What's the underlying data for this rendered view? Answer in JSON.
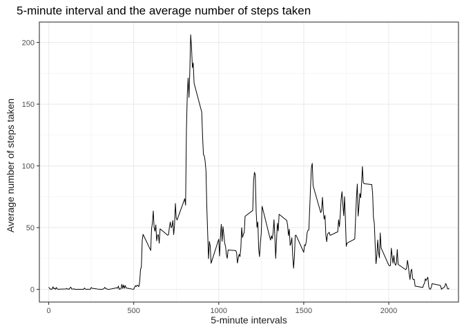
{
  "chart_data": {
    "type": "line",
    "title": "5-minute interval and the average number of steps taken",
    "xlabel": "5-minute intervals",
    "ylabel": "Average number of steps taken",
    "xlim": [
      -55,
      2410
    ],
    "ylim": [
      -10.3,
      216.5
    ],
    "x_ticks": [
      0,
      500,
      1000,
      1500,
      2000
    ],
    "x_tick_labels": [
      "0",
      "500",
      "1000",
      "1500",
      "2000"
    ],
    "y_ticks": [
      0,
      50,
      100,
      150,
      200
    ],
    "y_tick_labels": [
      "0",
      "50",
      "100",
      "150",
      "200"
    ],
    "grid": true,
    "series": [
      {
        "color": "#000000",
        "points": [
          [
            0,
            1.7
          ],
          [
            10,
            0.1
          ],
          [
            15,
            0.2
          ],
          [
            20,
            0.1
          ],
          [
            25,
            2.1
          ],
          [
            30,
            0.5
          ],
          [
            35,
            0.9
          ],
          [
            40,
            0
          ],
          [
            45,
            1.5
          ],
          [
            50,
            0.3
          ],
          [
            55,
            0.1
          ],
          [
            100,
            0.3
          ],
          [
            105,
            0.7
          ],
          [
            110,
            0.2
          ],
          [
            115,
            0.3
          ],
          [
            120,
            0
          ],
          [
            125,
            1.1
          ],
          [
            130,
            1.8
          ],
          [
            135,
            0.2
          ],
          [
            140,
            0.2
          ],
          [
            145,
            0.4
          ],
          [
            150,
            0.3
          ],
          [
            155,
            0
          ],
          [
            200,
            0
          ],
          [
            205,
            0
          ],
          [
            210,
            1.1
          ],
          [
            215,
            0.3
          ],
          [
            220,
            0
          ],
          [
            225,
            0.1
          ],
          [
            230,
            0
          ],
          [
            235,
            0.2
          ],
          [
            240,
            0
          ],
          [
            245,
            0
          ],
          [
            250,
            1.5
          ],
          [
            255,
            0.9
          ],
          [
            300,
            0
          ],
          [
            305,
            0
          ],
          [
            310,
            0
          ],
          [
            315,
            0
          ],
          [
            320,
            0.2
          ],
          [
            325,
            0.6
          ],
          [
            330,
            1.6
          ],
          [
            335,
            0.6
          ],
          [
            340,
            0.5
          ],
          [
            345,
            0.1
          ],
          [
            350,
            0
          ],
          [
            355,
            0
          ],
          [
            400,
            1.2
          ],
          [
            405,
            0.9
          ],
          [
            410,
            2.6
          ],
          [
            415,
            0
          ],
          [
            420,
            0.3
          ],
          [
            425,
            0.4
          ],
          [
            430,
            4.1
          ],
          [
            435,
            0.7
          ],
          [
            440,
            3.5
          ],
          [
            445,
            0.8
          ],
          [
            450,
            3.1
          ],
          [
            455,
            1.1
          ],
          [
            500,
            0
          ],
          [
            505,
            1.6
          ],
          [
            510,
            3
          ],
          [
            515,
            2.2
          ],
          [
            520,
            3.3
          ],
          [
            525,
            3
          ],
          [
            530,
            2.1
          ],
          [
            535,
            6.1
          ],
          [
            540,
            16
          ],
          [
            545,
            18.3
          ],
          [
            550,
            39.5
          ],
          [
            555,
            44.5
          ],
          [
            600,
            31.5
          ],
          [
            605,
            49.3
          ],
          [
            610,
            53.8
          ],
          [
            615,
            63.5
          ],
          [
            620,
            50
          ],
          [
            625,
            47.1
          ],
          [
            630,
            52.2
          ],
          [
            635,
            39.3
          ],
          [
            640,
            44
          ],
          [
            645,
            44.2
          ],
          [
            650,
            37.4
          ],
          [
            655,
            49
          ],
          [
            700,
            43.8
          ],
          [
            705,
            44.4
          ],
          [
            710,
            50.5
          ],
          [
            715,
            54.5
          ],
          [
            720,
            49.9
          ],
          [
            725,
            50.9
          ],
          [
            730,
            55.7
          ],
          [
            735,
            44.3
          ],
          [
            740,
            52.3
          ],
          [
            745,
            69.5
          ],
          [
            750,
            57.8
          ],
          [
            755,
            56.2
          ],
          [
            800,
            73.4
          ],
          [
            805,
            68.2
          ],
          [
            810,
            129.4
          ],
          [
            815,
            157.5
          ],
          [
            820,
            171.2
          ],
          [
            825,
            155.4
          ],
          [
            830,
            177.3
          ],
          [
            835,
            206.2
          ],
          [
            840,
            195.9
          ],
          [
            845,
            179.6
          ],
          [
            850,
            183.4
          ],
          [
            855,
            167
          ],
          [
            900,
            143.5
          ],
          [
            905,
            124
          ],
          [
            910,
            109.1
          ],
          [
            915,
            108.1
          ],
          [
            920,
            103.7
          ],
          [
            925,
            95.9
          ],
          [
            930,
            66.2
          ],
          [
            935,
            45.2
          ],
          [
            940,
            24.8
          ],
          [
            945,
            38.8
          ],
          [
            950,
            34.9
          ],
          [
            955,
            21.1
          ],
          [
            1000,
            40.6
          ],
          [
            1005,
            27
          ],
          [
            1010,
            42.4
          ],
          [
            1015,
            52.7
          ],
          [
            1020,
            38.9
          ],
          [
            1025,
            50.8
          ],
          [
            1030,
            44.3
          ],
          [
            1035,
            37.4
          ],
          [
            1040,
            34.7
          ],
          [
            1045,
            28.3
          ],
          [
            1050,
            25.1
          ],
          [
            1055,
            31.9
          ],
          [
            1100,
            31.4
          ],
          [
            1105,
            29.7
          ],
          [
            1110,
            21.3
          ],
          [
            1115,
            25.5
          ],
          [
            1120,
            28.4
          ],
          [
            1125,
            26.5
          ],
          [
            1130,
            33.4
          ],
          [
            1135,
            49.98
          ],
          [
            1140,
            42
          ],
          [
            1145,
            44.6
          ],
          [
            1150,
            46
          ],
          [
            1155,
            59.2
          ],
          [
            1200,
            63.9
          ],
          [
            1205,
            87.7
          ],
          [
            1210,
            94.8
          ],
          [
            1215,
            92.8
          ],
          [
            1220,
            63.4
          ],
          [
            1225,
            50.2
          ],
          [
            1230,
            54.5
          ],
          [
            1235,
            32.4
          ],
          [
            1240,
            26.5
          ],
          [
            1245,
            37.7
          ],
          [
            1250,
            45.1
          ],
          [
            1255,
            67.3
          ],
          [
            1300,
            42.3
          ],
          [
            1305,
            39.9
          ],
          [
            1310,
            43.3
          ],
          [
            1315,
            40.98
          ],
          [
            1320,
            46.2
          ],
          [
            1325,
            56.4
          ],
          [
            1330,
            42.8
          ],
          [
            1335,
            25.1
          ],
          [
            1340,
            39.97
          ],
          [
            1345,
            53.5
          ],
          [
            1350,
            47.3
          ],
          [
            1355,
            60.8
          ],
          [
            1400,
            55.8
          ],
          [
            1405,
            51.96
          ],
          [
            1410,
            43.6
          ],
          [
            1415,
            48.7
          ],
          [
            1420,
            35.5
          ],
          [
            1425,
            37.5
          ],
          [
            1430,
            41.8
          ],
          [
            1435,
            27.5
          ],
          [
            1440,
            17.1
          ],
          [
            1445,
            26.1
          ],
          [
            1450,
            43.6
          ],
          [
            1455,
            43.8
          ],
          [
            1500,
            30
          ],
          [
            1505,
            36.1
          ],
          [
            1510,
            35.5
          ],
          [
            1515,
            38.8
          ],
          [
            1520,
            45.96
          ],
          [
            1525,
            47.8
          ],
          [
            1530,
            48.1
          ],
          [
            1535,
            65.3
          ],
          [
            1540,
            82.9
          ],
          [
            1545,
            98.7
          ],
          [
            1550,
            102.1
          ],
          [
            1555,
            83.96
          ],
          [
            1600,
            62.1
          ],
          [
            1605,
            64.1
          ],
          [
            1610,
            74.5
          ],
          [
            1615,
            63.2
          ],
          [
            1620,
            56.9
          ],
          [
            1625,
            59.8
          ],
          [
            1630,
            43.9
          ],
          [
            1635,
            38.6
          ],
          [
            1640,
            44.7
          ],
          [
            1645,
            45.5
          ],
          [
            1650,
            46.2
          ],
          [
            1655,
            43.7
          ],
          [
            1700,
            46.6
          ],
          [
            1705,
            56.3
          ],
          [
            1710,
            50.7
          ],
          [
            1715,
            61.2
          ],
          [
            1720,
            73.4
          ],
          [
            1725,
            79.1
          ],
          [
            1730,
            68.9
          ],
          [
            1735,
            59.7
          ],
          [
            1740,
            75.1
          ],
          [
            1745,
            56.5
          ],
          [
            1750,
            34.8
          ],
          [
            1755,
            37.5
          ],
          [
            1800,
            40.7
          ],
          [
            1805,
            58
          ],
          [
            1810,
            74.7
          ],
          [
            1815,
            85.3
          ],
          [
            1820,
            59.3
          ],
          [
            1825,
            67.8
          ],
          [
            1830,
            77.7
          ],
          [
            1835,
            74.2
          ],
          [
            1840,
            85.3
          ],
          [
            1845,
            99.5
          ],
          [
            1850,
            86.6
          ],
          [
            1855,
            85.6
          ],
          [
            1900,
            84.9
          ],
          [
            1905,
            77.8
          ],
          [
            1910,
            58
          ],
          [
            1915,
            53.4
          ],
          [
            1920,
            36.3
          ],
          [
            1925,
            20.7
          ],
          [
            1930,
            27.4
          ],
          [
            1935,
            40
          ],
          [
            1940,
            30.2
          ],
          [
            1945,
            25.5
          ],
          [
            1950,
            45.7
          ],
          [
            1955,
            33.5
          ],
          [
            2000,
            19.6
          ],
          [
            2005,
            19
          ],
          [
            2010,
            19.3
          ],
          [
            2015,
            33.3
          ],
          [
            2020,
            26.8
          ],
          [
            2025,
            21.2
          ],
          [
            2030,
            27.3
          ],
          [
            2035,
            21.3
          ],
          [
            2040,
            19.5
          ],
          [
            2045,
            21.3
          ],
          [
            2050,
            32.3
          ],
          [
            2055,
            20.2
          ],
          [
            2100,
            15.9
          ],
          [
            2105,
            17.2
          ],
          [
            2110,
            23.5
          ],
          [
            2115,
            19.2
          ],
          [
            2120,
            12.5
          ],
          [
            2125,
            8
          ],
          [
            2130,
            14.7
          ],
          [
            2135,
            16.3
          ],
          [
            2140,
            8.7
          ],
          [
            2145,
            7.8
          ],
          [
            2150,
            8.1
          ],
          [
            2155,
            2.6
          ],
          [
            2200,
            1.5
          ],
          [
            2205,
            3.7
          ],
          [
            2210,
            4.8
          ],
          [
            2215,
            8.5
          ],
          [
            2220,
            7.1
          ],
          [
            2225,
            8.7
          ],
          [
            2230,
            9.8
          ],
          [
            2235,
            2.2
          ],
          [
            2240,
            0.3
          ],
          [
            2245,
            0.1
          ],
          [
            2250,
            1.6
          ],
          [
            2255,
            4.6
          ],
          [
            2300,
            3.3
          ],
          [
            2305,
            2.8
          ],
          [
            2310,
            0
          ],
          [
            2315,
            0.8
          ],
          [
            2320,
            1
          ],
          [
            2325,
            1.6
          ],
          [
            2330,
            2.6
          ],
          [
            2335,
            4.7
          ],
          [
            2340,
            3.3
          ],
          [
            2345,
            0.6
          ],
          [
            2350,
            0.2
          ],
          [
            2355,
            1.1
          ]
        ]
      }
    ]
  }
}
